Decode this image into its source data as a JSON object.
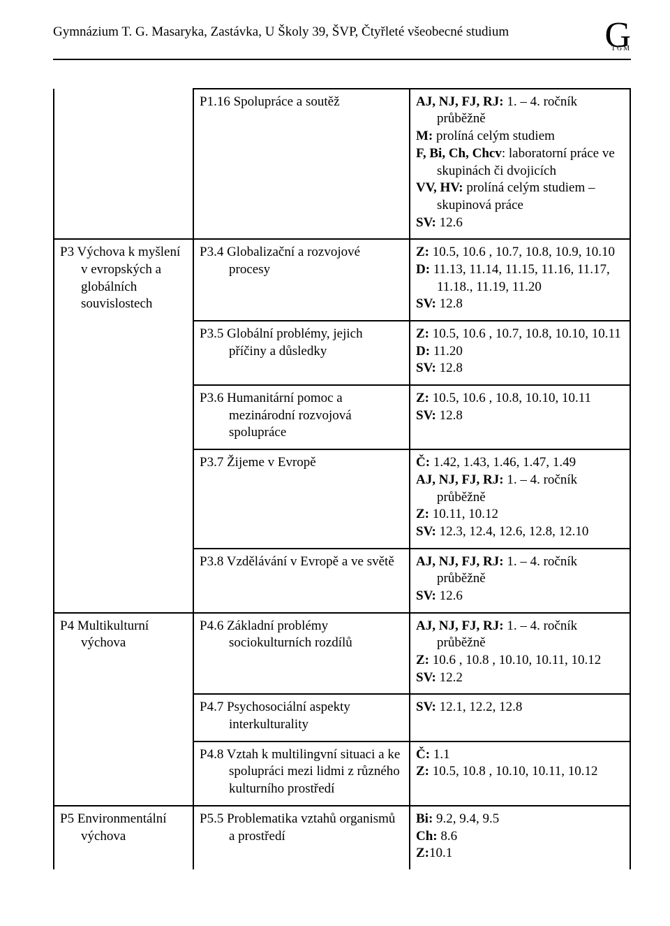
{
  "doc": {
    "header": "Gymnázium T. G. Masaryka, Zastávka, U Školy 39,  ŠVP,  Čtyřleté všeobecné studium",
    "logo_big": "G",
    "logo_small": "TGM"
  },
  "rows": [
    {
      "colA": "",
      "colB_code": "P1.16",
      "colB_title": "Spolupráce a soutěž",
      "colC": "<b>AJ, NJ, FJ, RJ:</b> 1. – 4. ročník průběžně\n<b>M:</b> prolíná celým studiem\n<b>F, Bi, Ch, Chcv</b>: laboratorní práce ve skupinách či dvojicích\n<b>VV, HV:</b> prolíná celým studiem – skupinová práce\n<b>SV:</b> 12.6"
    },
    {
      "colA": "P3  Výchova k myšlení v evropských a globálních souvislostech",
      "colB_code": "P3.4",
      "colB_title": "Globalizační a rozvojové procesy",
      "colC": "<b>Z:</b> 10.5, 10.6 , 10.7, 10.8, 10.9, 10.10\n<b>D:</b> 11.13, 11.14, 11.15, 11.16, 11.17, 11.18., 11.19, 11.20\n<b>SV:</b> 12.8",
      "rowspan_a": 5
    },
    {
      "colB_code": "P3.5",
      "colB_title": "Globální problémy, jejich příčiny a důsledky",
      "colC": "<b>Z:</b> 10.5, 10.6 , 10.7, 10.8, 10.10, 10.11\n<b>D:</b> 11.20\n<b>SV:</b> 12.8"
    },
    {
      "colB_code": "P3.6",
      "colB_title": "Humanitární pomoc a mezinárodní rozvojová spolupráce",
      "colC": "<b>Z:</b> 10.5, 10.6 , 10.8, 10.10, 10.11\n<b>SV:</b> 12.8"
    },
    {
      "colB_code": "P3.7",
      "colB_title": "Žijeme v Evropě",
      "colC": "<b>Č:</b> 1.42, 1.43, 1.46, 1.47, 1.49\n<b>AJ, NJ, FJ, RJ:</b> 1. – 4. ročník průběžně\n<b>Z:</b> 10.11, 10.12\n<b>SV:</b> 12.3, 12.4, 12.6, 12.8, 12.10"
    },
    {
      "colB_code": "P3.8",
      "colB_title": "Vzdělávání v Evropě a ve světě",
      "colC": "<b>AJ, NJ, FJ, RJ:</b> 1. – 4. ročník průběžně\n<b>SV:</b> 12.6"
    },
    {
      "colA": "P4  Multikulturní výchova",
      "colB_code": "P4.6",
      "colB_title": "Základní problémy sociokulturních rozdílů",
      "colC": "<b>AJ, NJ, FJ, RJ:</b> 1. – 4. ročník průběžně\n<b>Z:</b> 10.6 , 10.8 , 10.10, 10.11, 10.12\n<b>SV:</b> 12.2",
      "rowspan_a": 3
    },
    {
      "colB_code": "P4.7",
      "colB_title": "Psychosociální aspekty interkulturality",
      "colC": "<b>SV:</b> 12.1, 12.2, 12.8"
    },
    {
      "colB_code": "P4.8",
      "colB_title": "Vztah k multilingvní situaci a ke spolupráci mezi lidmi z různého kulturního prostředí",
      "colC": "<b>Č:</b> 1.1\n<b>Z:</b> 10.5, 10.8 , 10.10, 10.11, 10.12"
    },
    {
      "colA": "P5  Environmentální výchova",
      "colB_code": "P5.5",
      "colB_title": "Problematika vztahů organismů a prostředí",
      "colC": "<b>Bi:</b> 9.2, 9.4, 9.5\n<b>Ch:</b> 8.6\n<b>Z:</b>10.1",
      "open_bottom": true
    }
  ]
}
